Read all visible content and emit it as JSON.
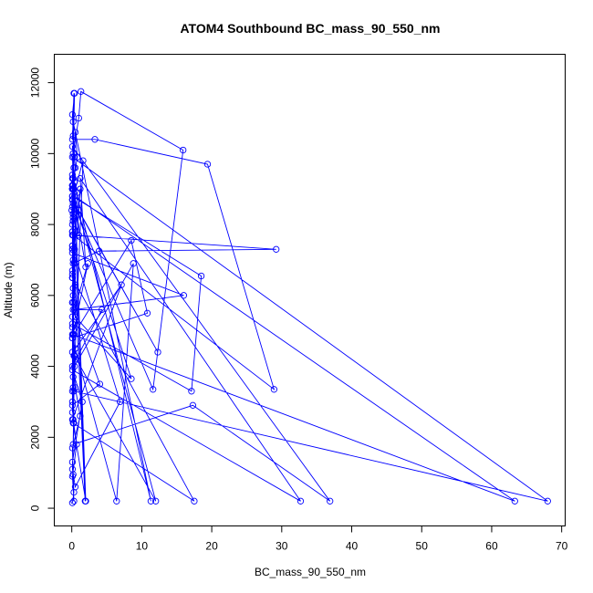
{
  "chart_data": {
    "type": "line",
    "title": "ATOM4 Southbound BC_mass_90_550_nm",
    "xlabel": "BC_mass_90_550_nm",
    "ylabel": "Altitude (m)",
    "xlim": [
      -2.5,
      70.5
    ],
    "ylim": [
      -500,
      12800
    ],
    "xticks": [
      0,
      10,
      20,
      30,
      40,
      50,
      60,
      70
    ],
    "yticks": [
      0,
      2000,
      4000,
      6000,
      8000,
      10000,
      12000
    ],
    "x_tick_labels": [
      "0",
      "10",
      "20",
      "30",
      "40",
      "50",
      "60",
      "70"
    ],
    "y_tick_labels": [
      "0",
      "2000",
      "4000",
      "6000",
      "8000",
      "10000",
      "12000"
    ],
    "grid": false,
    "legend": "none",
    "series": [
      {
        "color": "#0000ff",
        "markers": "open-circle",
        "x": [
          0.1,
          0.3,
          0.2,
          0.1,
          1.2,
          0.5,
          0.3,
          0.1,
          0.2,
          0.4,
          0.1,
          0.0,
          0.1,
          0.2,
          1.0,
          1.3,
          15.9,
          11.6,
          0.2,
          0.1,
          0.5,
          0.8,
          0.1,
          0.2,
          0.1,
          0.1,
          0.3,
          0.2,
          0.5,
          0.1,
          0.2,
          0.7,
          0.1,
          0.3,
          0.1,
          1.5,
          0.1,
          32.7,
          1.2,
          2.0,
          0.1,
          0.3,
          0.1,
          3.3,
          19.4,
          28.9,
          0.2,
          0.1,
          0.5,
          0.2,
          0.1,
          0.4,
          0.1,
          0.1,
          0.1,
          29.2,
          3.9,
          0.2,
          0.5,
          0.1,
          0.3,
          8.5,
          10.8,
          0.1,
          2.3,
          0.1,
          0.4,
          8.8,
          6.4,
          0.1,
          0.2,
          0.1,
          18.5,
          17.1,
          0.1,
          0.3,
          0.1,
          12.0,
          0.1,
          0.2,
          0.4,
          2.0,
          0.1,
          7.1,
          0.5,
          1.6,
          0.1,
          0.2,
          0.3,
          0.1,
          0.5,
          6.9,
          0.1,
          0.2,
          1.0,
          0.3,
          0.1,
          16.0,
          0.4,
          4.3,
          0.1,
          0.2,
          0.8,
          0.1,
          0.2,
          1.9,
          0.1,
          68.0,
          0.3,
          0.1,
          0.2,
          0.1,
          17.5,
          0.2,
          0.1,
          0.2,
          0.1,
          0.4,
          63.3,
          0.1,
          0.3,
          0.1,
          36.9,
          17.3,
          0.2,
          0.4,
          0.1,
          0.2,
          0.3,
          0.1,
          1.0,
          12.3,
          0.1,
          0.2,
          4.0,
          0.1,
          0.4,
          0.1,
          8.5,
          0.5,
          0.1,
          0.2,
          0.1,
          0.2,
          11.3,
          0.2,
          0.1,
          0.1,
          0.2,
          0.1,
          1.2,
          0.1,
          0.2,
          0.1
        ],
        "y": [
          150,
          450,
          950,
          1700,
          2600,
          3400,
          4300,
          5100,
          6000,
          6900,
          7800,
          8400,
          9100,
          10000,
          11000,
          11750,
          10100,
          3350,
          8600,
          9400,
          10600,
          9900,
          9100,
          8300,
          7400,
          6600,
          5800,
          4900,
          4200,
          3300,
          2500,
          1800,
          900,
          200,
          1300,
          3000,
          3900,
          200,
          9300,
          6800,
          9000,
          11700,
          10400,
          10400,
          9700,
          3350,
          7700,
          8700,
          9600,
          10500,
          11100,
          11700,
          9000,
          8500,
          7700,
          7300,
          7250,
          6900,
          6300,
          5800,
          4900,
          7550,
          5500,
          4800,
          6900,
          5400,
          4000,
          6900,
          200,
          4800,
          9300,
          8800,
          6550,
          3300,
          5200,
          9600,
          9000,
          200,
          4400,
          8100,
          9200,
          200,
          2500,
          6300,
          4500,
          9800,
          8700,
          3700,
          2400,
          1100,
          600,
          3000,
          7400,
          8200,
          7700,
          9000,
          7200,
          6000,
          5600,
          5600,
          4000,
          9000,
          8900,
          6500,
          7700,
          200,
          9900,
          200,
          3300,
          7300,
          9100,
          6500,
          200,
          2400,
          3000,
          3400,
          7800,
          8800,
          200,
          4900,
          9600,
          10200,
          200,
          2900,
          1800,
          4300,
          6700,
          6200,
          9900,
          8000,
          8400,
          4400,
          8700,
          5600,
          3500,
          2900,
          7300,
          8800,
          3650,
          5400,
          9100,
          7000,
          2700,
          10900,
          200,
          9300,
          6500,
          9000,
          8300,
          7300,
          9000,
          5800,
          8100,
          9300
        ]
      }
    ]
  }
}
